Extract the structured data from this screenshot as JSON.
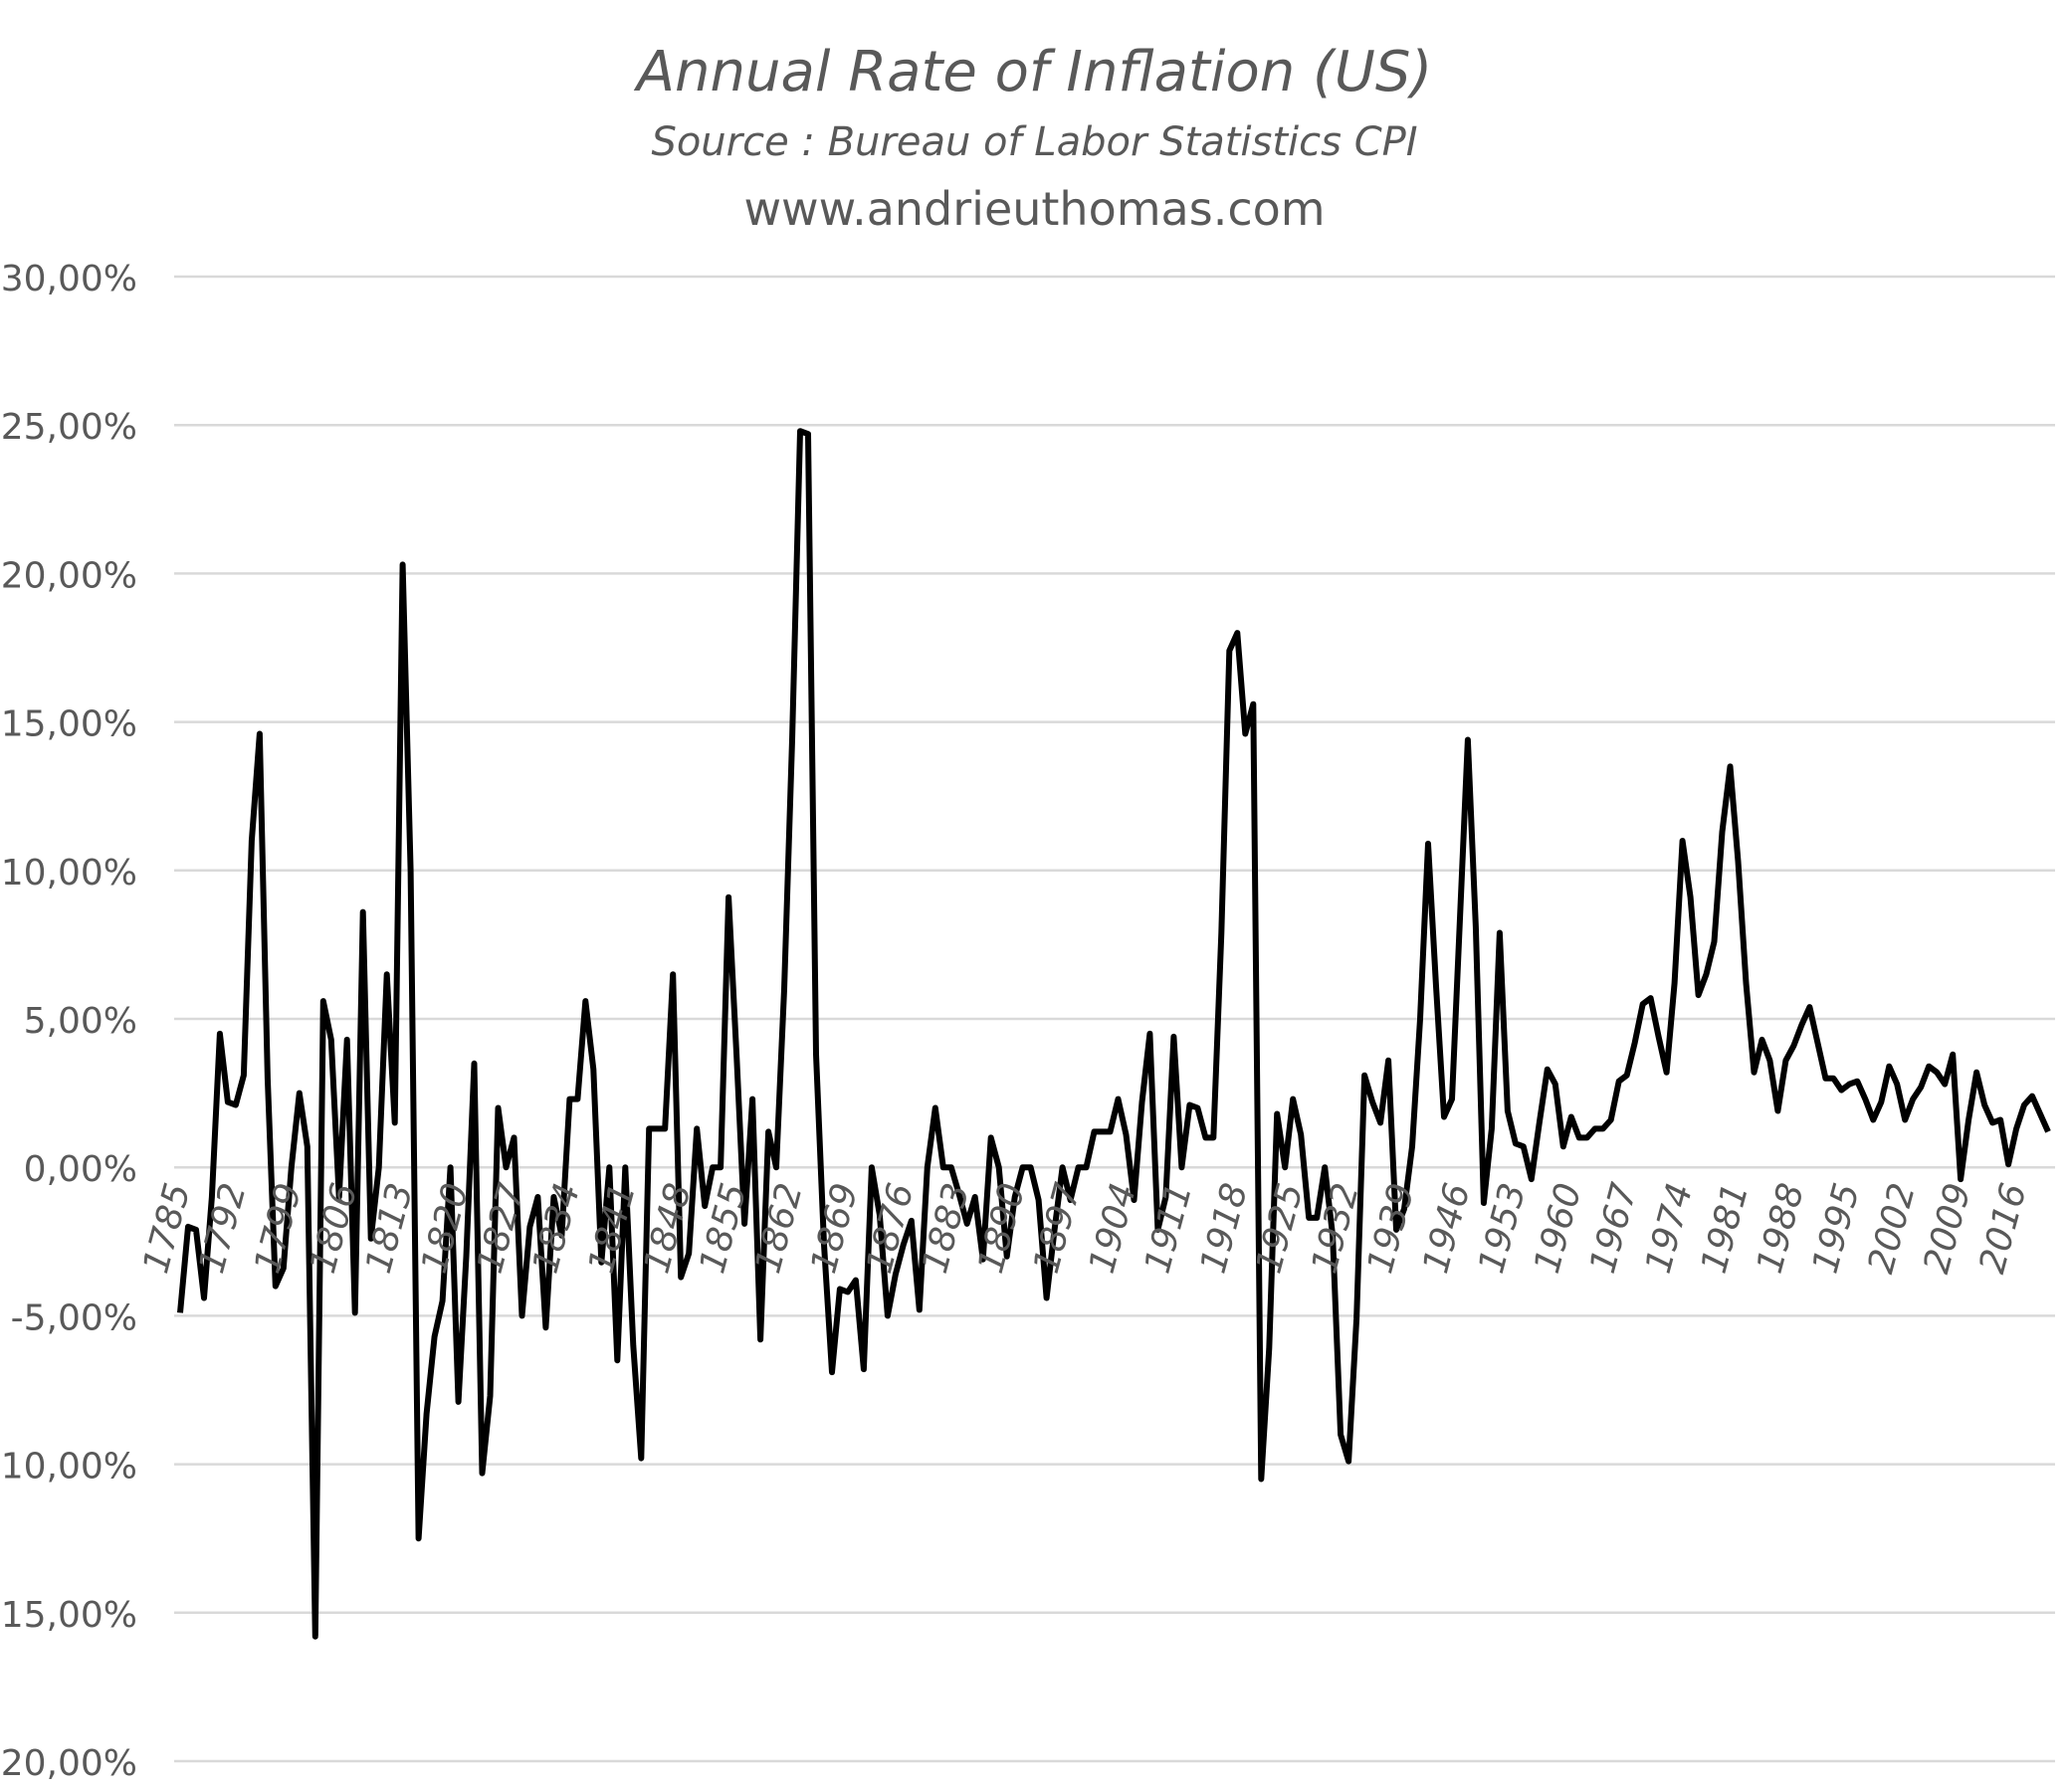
{
  "chart_data": {
    "type": "line",
    "title": "Annual Rate of Inflation (US)",
    "subtitle": "Source : Bureau of Labor Statistics CPI",
    "website": "www.andrieuthomas.com",
    "xlabel": "",
    "ylabel": "",
    "ylim": [
      -0.2,
      0.3
    ],
    "y_ticks": [
      0.3,
      0.25,
      0.2,
      0.15,
      0.1,
      0.05,
      0.0,
      -0.05,
      -0.1,
      -0.15,
      -0.2
    ],
    "y_tick_labels": [
      "30,00%",
      "25,00%",
      "20,00%",
      "15,00%",
      "10,00%",
      "5,00%",
      "0,00%",
      "-5,00%",
      "-10,00%",
      "-15,00%",
      "-20,00%"
    ],
    "x_tick_labels": [
      "1785",
      "1792",
      "1799",
      "1806",
      "1813",
      "1820",
      "1827",
      "1834",
      "1841",
      "1848",
      "1855",
      "1862",
      "1869",
      "1876",
      "1883",
      "1890",
      "1897",
      "1904",
      "1911",
      "1918",
      "1925",
      "1932",
      "1939",
      "1946",
      "1953",
      "1960",
      "1967",
      "1974",
      "1981",
      "1988",
      "1995",
      "2002",
      "2009",
      "2016"
    ],
    "grid": true,
    "legend": "none",
    "line_color": "#000000",
    "x_start": 1785,
    "values": [
      -4.9,
      -2.0,
      -2.1,
      -4.4,
      -1.0,
      4.5,
      2.2,
      2.1,
      3.1,
      11.0,
      14.6,
      3.0,
      -4.0,
      -3.4,
      0.0,
      2.5,
      0.7,
      -15.8,
      5.6,
      4.3,
      -1.0,
      4.3,
      -4.9,
      8.6,
      -2.4,
      0.0,
      6.5,
      1.5,
      20.3,
      10.0,
      -12.5,
      -8.3,
      -5.7,
      -4.5,
      0.0,
      -7.9,
      -3.0,
      3.5,
      -10.3,
      -7.7,
      2.0,
      0.0,
      1.0,
      -5.0,
      -2.0,
      -1.0,
      -5.4,
      -1.0,
      -2.3,
      2.3,
      2.3,
      5.6,
      3.3,
      -3.2,
      0.0,
      -6.5,
      0.0,
      -6.0,
      -9.8,
      1.3,
      1.3,
      1.3,
      6.5,
      -3.7,
      -2.9,
      1.3,
      -1.3,
      0.0,
      0.0,
      9.1,
      3.8,
      -1.9,
      2.3,
      -5.8,
      1.2,
      0.0,
      6.0,
      14.4,
      24.8,
      24.7,
      3.8,
      -2.6,
      -6.9,
      -4.1,
      -4.2,
      -3.8,
      -6.8,
      0.0,
      -1.6,
      -5.0,
      -3.6,
      -2.6,
      -1.8,
      -4.8,
      0.0,
      2.0,
      0.0,
      0.0,
      -0.9,
      -1.9,
      -1.0,
      -3.1,
      1.0,
      0.0,
      -3.0,
      -1.0,
      0.0,
      0.0,
      -1.1,
      -4.4,
      -2.1,
      0.0,
      -1.1,
      0.0,
      0.0,
      1.2,
      1.2,
      1.2,
      2.3,
      1.1,
      -1.1,
      2.2,
      4.5,
      -2.1,
      -1.0,
      4.4,
      0.0,
      2.1,
      2.0,
      1.0,
      1.0,
      7.9,
      17.4,
      18.0,
      14.6,
      15.6,
      -10.5,
      -6.1,
      1.8,
      0.0,
      2.3,
      1.1,
      -1.7,
      -1.7,
      0.0,
      -2.3,
      -9.0,
      -9.9,
      -5.1,
      3.1,
      2.2,
      1.5,
      3.6,
      -2.1,
      -1.4,
      0.7,
      5.0,
      10.9,
      6.1,
      1.7,
      2.3,
      8.3,
      14.4,
      8.1,
      -1.2,
      1.3,
      7.9,
      1.9,
      0.8,
      0.7,
      -0.4,
      1.5,
      3.3,
      2.8,
      0.7,
      1.7,
      1.0,
      1.0,
      1.3,
      1.3,
      1.6,
      2.9,
      3.1,
      4.2,
      5.5,
      5.7,
      4.4,
      3.2,
      6.2,
      11.0,
      9.1,
      5.8,
      6.5,
      7.6,
      11.3,
      13.5,
      10.3,
      6.2,
      3.2,
      4.3,
      3.6,
      1.9,
      3.6,
      4.1,
      4.8,
      5.4,
      4.2,
      3.0,
      3.0,
      2.6,
      2.8,
      2.9,
      2.3,
      1.6,
      2.2,
      3.4,
      2.8,
      1.6,
      2.3,
      2.7,
      3.4,
      3.2,
      2.8,
      3.8,
      -0.4,
      1.6,
      3.2,
      2.1,
      1.5,
      1.6,
      0.1,
      1.3,
      2.1,
      2.4,
      1.8,
      1.2
    ]
  }
}
